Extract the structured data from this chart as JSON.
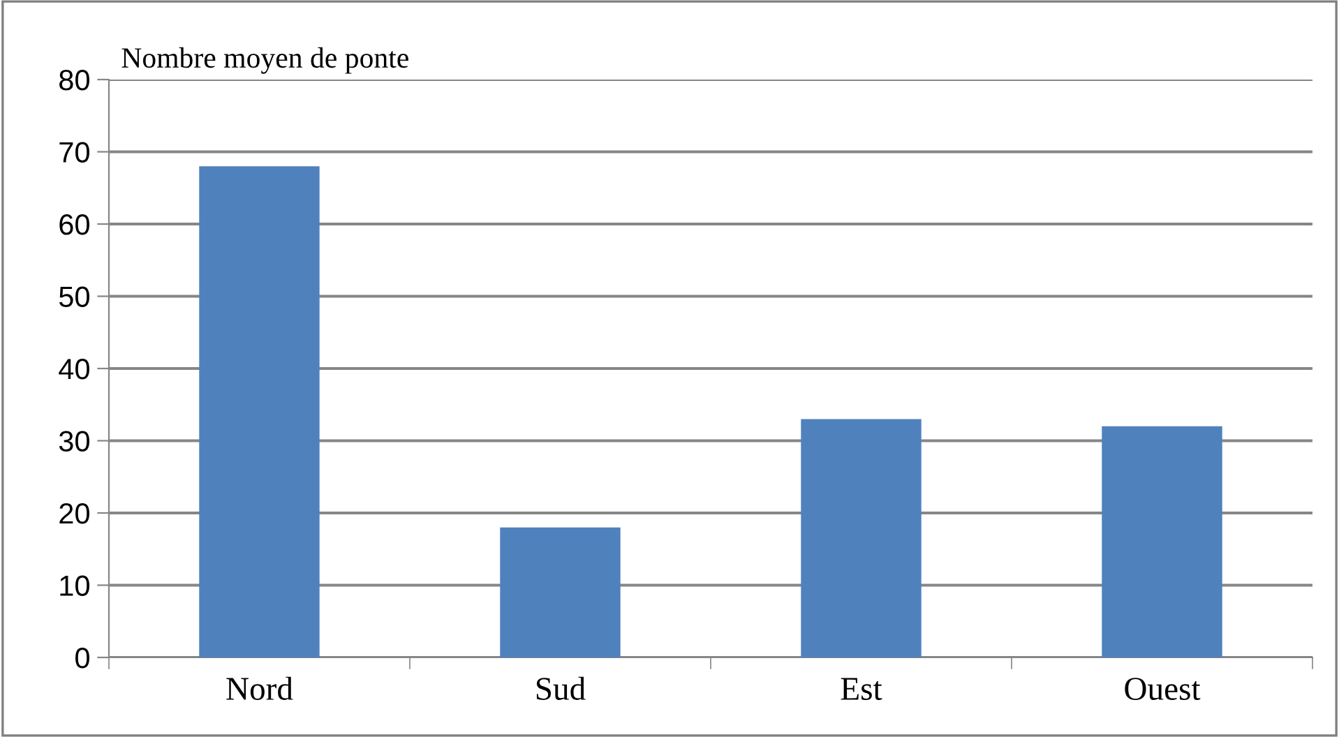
{
  "chart_data": {
    "type": "bar",
    "ylabel": "Nombre moyen de ponte",
    "categories": [
      "Nord",
      "Sud",
      "Est",
      "Ouest"
    ],
    "series": [
      {
        "color": "#4f81bd",
        "values": [
          68,
          18,
          33,
          32
        ]
      }
    ],
    "ylim": [
      0,
      80
    ],
    "yticks": [
      0,
      10,
      20,
      30,
      40,
      50,
      60,
      70,
      80
    ],
    "grid": "y",
    "legend": false
  }
}
